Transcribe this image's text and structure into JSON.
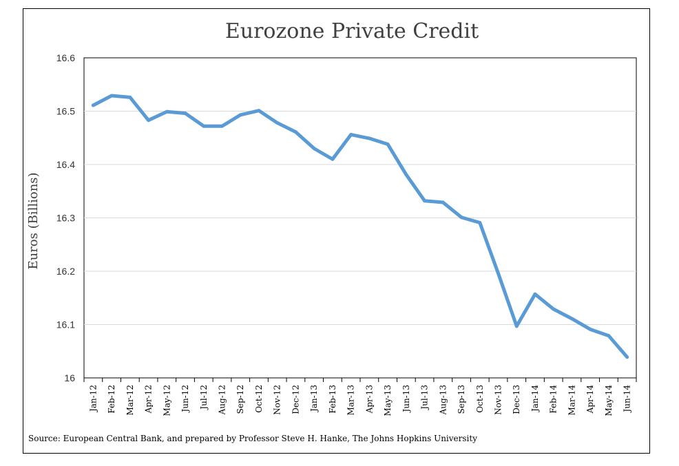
{
  "chart_data": {
    "type": "line",
    "title": "Eurozone Private Credit",
    "xlabel": "",
    "ylabel": "Euros (Billions)",
    "ylim": [
      16,
      16.6
    ],
    "yticks": [
      "16",
      "16.1",
      "16.2",
      "16.3",
      "16.4",
      "16.5",
      "16.6"
    ],
    "grid": true,
    "categories": [
      "Jan-12",
      "Feb-12",
      "Mar-12",
      "Apr-12",
      "May-12",
      "Jun-12",
      "Jul-12",
      "Aug-12",
      "Sep-12",
      "Oct-12",
      "Nov-12",
      "Dec-12",
      "Jan-13",
      "Feb-13",
      "Mar-13",
      "Apr-13",
      "May-13",
      "Jun-13",
      "Jul-13",
      "Aug-13",
      "Sep-13",
      "Oct-13",
      "Nov-13",
      "Dec-13",
      "Jan-14",
      "Feb-14",
      "Mar-14",
      "Apr-14",
      "May-14",
      "Jun-14"
    ],
    "series": [
      {
        "values": [
          16.511,
          16.529,
          16.526,
          16.483,
          16.499,
          16.496,
          16.472,
          16.472,
          16.493,
          16.501,
          16.478,
          16.461,
          16.43,
          16.41,
          16.456,
          16.449,
          16.438,
          16.381,
          16.332,
          16.329,
          16.301,
          16.291,
          16.196,
          16.097,
          16.157,
          16.129,
          16.111,
          16.091,
          16.079,
          16.039
        ],
        "color": "#5B9BD5"
      }
    ],
    "source": "Source: European Central Bank, and prepared by Professor Steve H. Hanke, The Johns Hopkins University"
  }
}
